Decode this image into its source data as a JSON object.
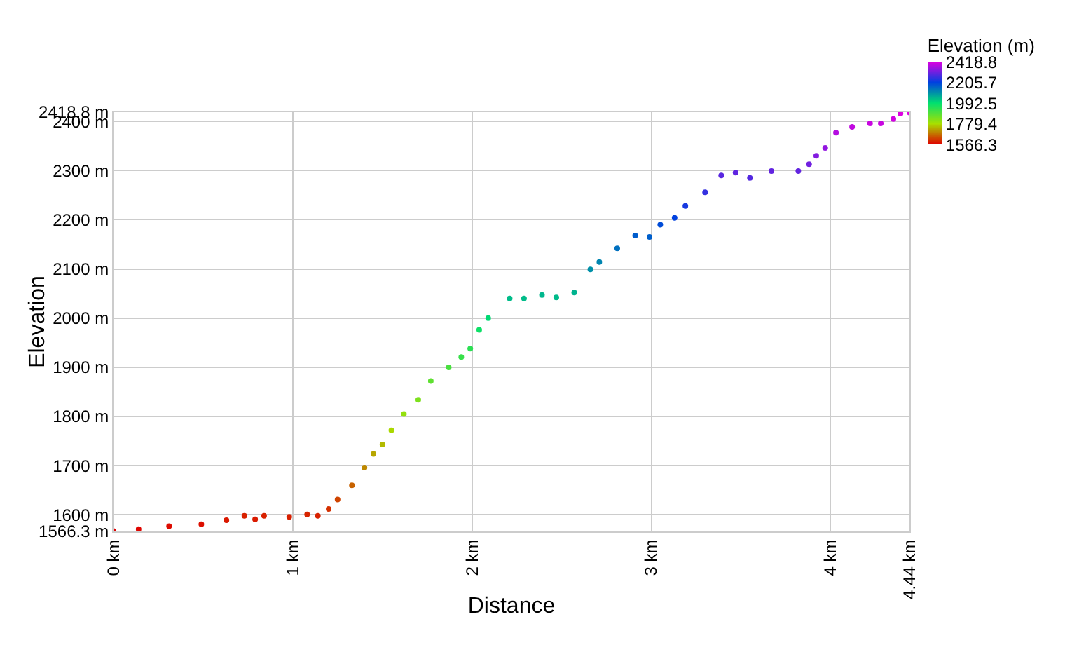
{
  "chart_data": {
    "type": "scatter",
    "xlabel": "Distance",
    "ylabel": "Elevation",
    "clabel": "Elevation (m)",
    "x": [
      0,
      0.14,
      0.31,
      0.49,
      0.63,
      0.73,
      0.79,
      0.84,
      0.98,
      1.08,
      1.14,
      1.2,
      1.25,
      1.33,
      1.4,
      1.45,
      1.5,
      1.55,
      1.62,
      1.7,
      1.77,
      1.87,
      1.94,
      1.99,
      2.04,
      2.09,
      2.21,
      2.29,
      2.39,
      2.47,
      2.57,
      2.66,
      2.71,
      2.81,
      2.91,
      2.99,
      3.05,
      3.13,
      3.19,
      3.3,
      3.39,
      3.47,
      3.55,
      3.67,
      3.82,
      3.88,
      3.92,
      3.97,
      4.03,
      4.12,
      4.22,
      4.28,
      4.35,
      4.39,
      4.44
    ],
    "values": [
      1567,
      1571,
      1577,
      1581,
      1589,
      1598,
      1591,
      1598,
      1596,
      1601,
      1598,
      1612,
      1631,
      1660,
      1696,
      1724,
      1743,
      1772,
      1805,
      1834,
      1872,
      1900,
      1921,
      1938,
      1976,
      2000,
      2040,
      2040,
      2047,
      2042,
      2052,
      2099,
      2114,
      2142,
      2168,
      2165,
      2190,
      2204,
      2228,
      2256,
      2290,
      2296,
      2285,
      2299,
      2299,
      2313,
      2330,
      2346,
      2377,
      2389,
      2396,
      2396,
      2405,
      2416,
      2418
    ],
    "cvalues": [
      1566.3,
      1571,
      1577,
      1581,
      1589,
      1598,
      1591,
      1598,
      1596,
      1601,
      1598,
      1612,
      1631,
      1660,
      1696,
      1724,
      1743,
      1772,
      1805,
      1834,
      1872,
      1900,
      1921,
      1938,
      1976,
      2000,
      2040,
      2040,
      2047,
      2042,
      2052,
      2099,
      2114,
      2142,
      2168,
      2165,
      2190,
      2204,
      2228,
      2256,
      2290,
      2296,
      2285,
      2299,
      2299,
      2313,
      2330,
      2346,
      2377,
      2389,
      2396,
      2396,
      2405,
      2416,
      2418.8
    ],
    "clim": [
      1566.3,
      2418.8
    ],
    "cticks": [
      1566.3,
      1779.4,
      1992.5,
      2205.7,
      2418.8
    ],
    "xlim": [
      0,
      4.44
    ],
    "xticks": [
      {
        "value": 0,
        "label": "0 km"
      },
      {
        "value": 1,
        "label": "1 km"
      },
      {
        "value": 2,
        "label": "2 km"
      },
      {
        "value": 3,
        "label": "3 km"
      },
      {
        "value": 4,
        "label": "4 km"
      },
      {
        "value": 4.44,
        "label": "4.44 km"
      }
    ],
    "ylim": [
      1566.3,
      2418.8
    ],
    "yticks": [
      {
        "value": 1566.3,
        "label": "1566.3 m"
      },
      {
        "value": 1600,
        "label": "1600 m"
      },
      {
        "value": 1700,
        "label": "1700 m"
      },
      {
        "value": 1800,
        "label": "1800 m"
      },
      {
        "value": 1900,
        "label": "1900 m"
      },
      {
        "value": 2000,
        "label": "2000 m"
      },
      {
        "value": 2100,
        "label": "2100 m"
      },
      {
        "value": 2200,
        "label": "2200 m"
      },
      {
        "value": 2300,
        "label": "2300 m"
      },
      {
        "value": 2400,
        "label": "2400 m"
      },
      {
        "value": 2418.8,
        "label": "2418.8 m"
      }
    ],
    "grid": true,
    "marker": "circle"
  }
}
